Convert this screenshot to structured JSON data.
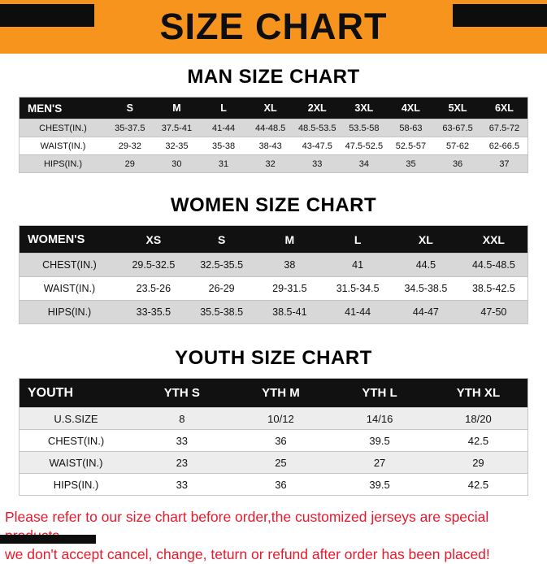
{
  "colors": {
    "banner_orange": "#F7941D",
    "notice_red": "#E8192C",
    "header_black": "#111111"
  },
  "banner": {
    "title": "SIZE CHART"
  },
  "sections": [
    {
      "id": "men",
      "heading": "MAN SIZE CHART",
      "table": {
        "header": [
          "MEN'S",
          "S",
          "M",
          "L",
          "XL",
          "2XL",
          "3XL",
          "4XL",
          "5XL",
          "6XL"
        ],
        "rows": [
          [
            "CHEST(IN.)",
            "35-37.5",
            "37.5-41",
            "41-44",
            "44-48.5",
            "48.5-53.5",
            "53.5-58",
            "58-63",
            "63-67.5",
            "67.5-72"
          ],
          [
            "WAIST(IN.)",
            "29-32",
            "32-35",
            "35-38",
            "38-43",
            "43-47.5",
            "47.5-52.5",
            "52.5-57",
            "57-62",
            "62-66.5"
          ],
          [
            "HIPS(IN.)",
            "29",
            "30",
            "31",
            "32",
            "33",
            "34",
            "35",
            "36",
            "37"
          ]
        ]
      }
    },
    {
      "id": "women",
      "heading": "WOMEN SIZE CHART",
      "table": {
        "header": [
          "WOMEN'S",
          "XS",
          "S",
          "M",
          "L",
          "XL",
          "XXL"
        ],
        "rows": [
          [
            "CHEST(IN.)",
            "29.5-32.5",
            "32.5-35.5",
            "38",
            "41",
            "44.5",
            "44.5-48.5"
          ],
          [
            "WAIST(IN.)",
            "23.5-26",
            "26-29",
            "29-31.5",
            "31.5-34.5",
            "34.5-38.5",
            "38.5-42.5"
          ],
          [
            "HIPS(IN.)",
            "33-35.5",
            "35.5-38.5",
            "38.5-41",
            "41-44",
            "44-47",
            "47-50"
          ]
        ]
      }
    },
    {
      "id": "youth",
      "heading": "YOUTH SIZE CHART",
      "table": {
        "header": [
          "YOUTH",
          "YTH S",
          "YTH M",
          "YTH L",
          "YTH XL"
        ],
        "rows": [
          [
            "U.S.SIZE",
            "8",
            "10/12",
            "14/16",
            "18/20"
          ],
          [
            "CHEST(IN.)",
            "33",
            "36",
            "39.5",
            "42.5"
          ],
          [
            "WAIST(IN.)",
            "23",
            "25",
            "27",
            "29"
          ],
          [
            "HIPS(IN.)",
            "33",
            "36",
            "39.5",
            "42.5"
          ]
        ]
      }
    }
  ],
  "notice": {
    "line1": "Please refer to our size chart before order,the customized jerseys are special products,",
    "line2": "we don't accept cancel, change, teturn or refund after order has been placed!"
  }
}
